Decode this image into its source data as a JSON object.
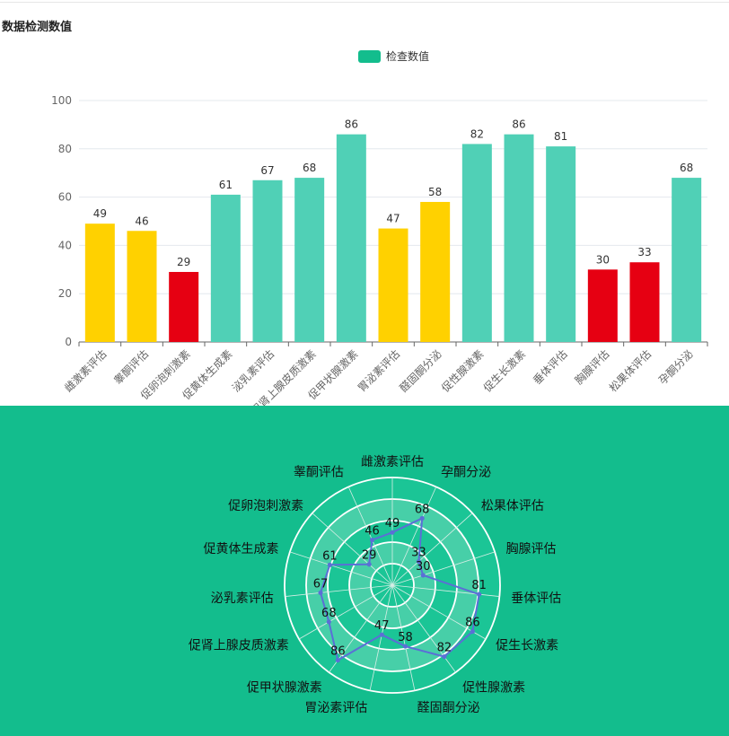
{
  "page": {
    "section_title": "数据检测数值"
  },
  "colors": {
    "normal": "#50d0b6",
    "low_warn": "#ffd100",
    "alert": "#e60012",
    "legend": "#13bd8d",
    "radar_bg": "#13bd8d",
    "radar_line": "#5b6fd6"
  },
  "chart_data": [
    {
      "type": "bar",
      "legend": [
        "检查数值"
      ],
      "legend_position": "top-center",
      "categories": [
        "雌激素评估",
        "睾酮评估",
        "促卵泡刺激素",
        "促黄体生成素",
        "泌乳素评估",
        "促肾上腺皮质激素",
        "促甲状腺激素",
        "胃泌素评估",
        "醛固酮分泌",
        "促性腺激素",
        "促生长激素",
        "垂体评估",
        "胸腺评估",
        "松果体评估",
        "孕酮分泌"
      ],
      "series": [
        {
          "name": "检查数值",
          "values": [
            49,
            46,
            29,
            61,
            67,
            68,
            86,
            47,
            58,
            82,
            86,
            81,
            30,
            33,
            68
          ]
        }
      ],
      "bar_colors": [
        "#ffd100",
        "#ffd100",
        "#e60012",
        "#50d0b6",
        "#50d0b6",
        "#50d0b6",
        "#50d0b6",
        "#ffd100",
        "#ffd100",
        "#50d0b6",
        "#50d0b6",
        "#50d0b6",
        "#e60012",
        "#e60012",
        "#50d0b6"
      ],
      "ylim": [
        0,
        100
      ],
      "yticks": [
        "0",
        "20",
        "40",
        "60",
        "80",
        "100"
      ],
      "grid": true,
      "data_labels": true
    },
    {
      "type": "radar",
      "indicators": [
        "雌激素评估",
        "孕酮分泌",
        "松果体评估",
        "胸腺评估",
        "垂体评估",
        "促生长激素",
        "促性腺激素",
        "醛固酮分泌",
        "胃泌素评估",
        "促甲状腺激素",
        "促肾上腺皮质激素",
        "泌乳素评估",
        "促黄体生成素",
        "促卵泡刺激素",
        "睾酮评估"
      ],
      "values": [
        49,
        68,
        33,
        30,
        81,
        86,
        82,
        58,
        47,
        86,
        68,
        67,
        61,
        29,
        46
      ],
      "max": 100,
      "rings": 5,
      "data_labels": true
    }
  ]
}
